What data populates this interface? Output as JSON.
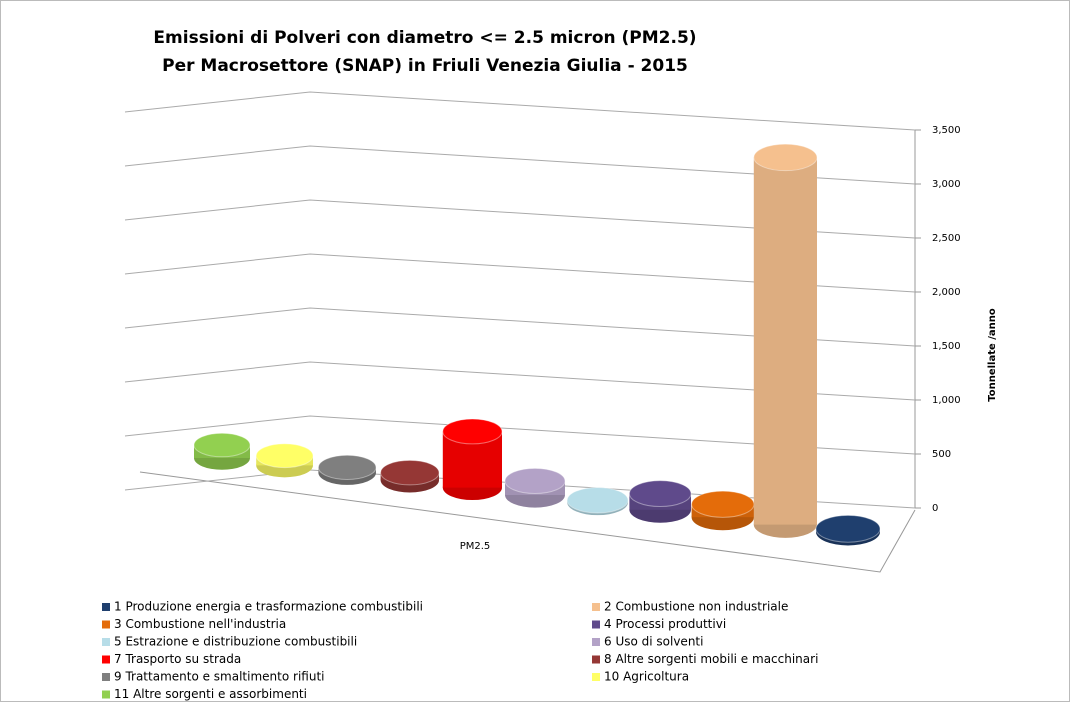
{
  "chart_data": {
    "type": "bar3d",
    "title": [
      "Emissioni di  Polveri con diametro <= 2.5 micron (PM2.5)",
      "Per Macrosettore (SNAP) in Friuli Venezia Giulia - 2015"
    ],
    "ylabel": "Tonnellate /anno",
    "categories": [
      "PM2.5"
    ],
    "ylim": [
      0,
      3500
    ],
    "yticks": [
      0,
      500,
      {
        "value": 1000,
        "label": "1,000"
      },
      {
        "value": 1500,
        "label": "1,500"
      },
      {
        "value": 2000,
        "label": "2,000"
      },
      {
        "value": 2500,
        "label": "2,500"
      },
      {
        "value": 3000,
        "label": "3,000"
      },
      {
        "value": 3500,
        "label": "3,500"
      }
    ],
    "grid": true,
    "series": [
      {
        "name": "1 Produzione energia e trasformazione combustibili",
        "color": "#1f3f6e",
        "values": [
          30
        ]
      },
      {
        "name": "2 Combustione non industriale",
        "color": "#f5c08e",
        "values": [
          3400
        ]
      },
      {
        "name": "3 Combustione nell'industria",
        "color": "#e46c0a",
        "values": [
          120
        ]
      },
      {
        "name": "4 Processi produttivi",
        "color": "#5f4a8b",
        "values": [
          150
        ]
      },
      {
        "name": "5 Estrazione e distribuzione combustibili",
        "color": "#b7dde8",
        "values": [
          20
        ]
      },
      {
        "name": "6 Uso di solventi",
        "color": "#b3a2c7",
        "values": [
          130
        ]
      },
      {
        "name": "7 Trasporto su strada",
        "color": "#ff0000",
        "values": [
          520
        ]
      },
      {
        "name": "8 Altre sorgenti mobili e macchinari",
        "color": "#953735",
        "values": [
          70
        ]
      },
      {
        "name": "9 Trattamento e smaltimento rifiuti",
        "color": "#7f7f7f",
        "values": [
          50
        ]
      },
      {
        "name": "10 Agricoltura",
        "color": "#ffff66",
        "values": [
          90
        ]
      },
      {
        "name": "11 Altre sorgenti e assorbimenti",
        "color": "#92d050",
        "values": [
          120
        ]
      }
    ]
  }
}
